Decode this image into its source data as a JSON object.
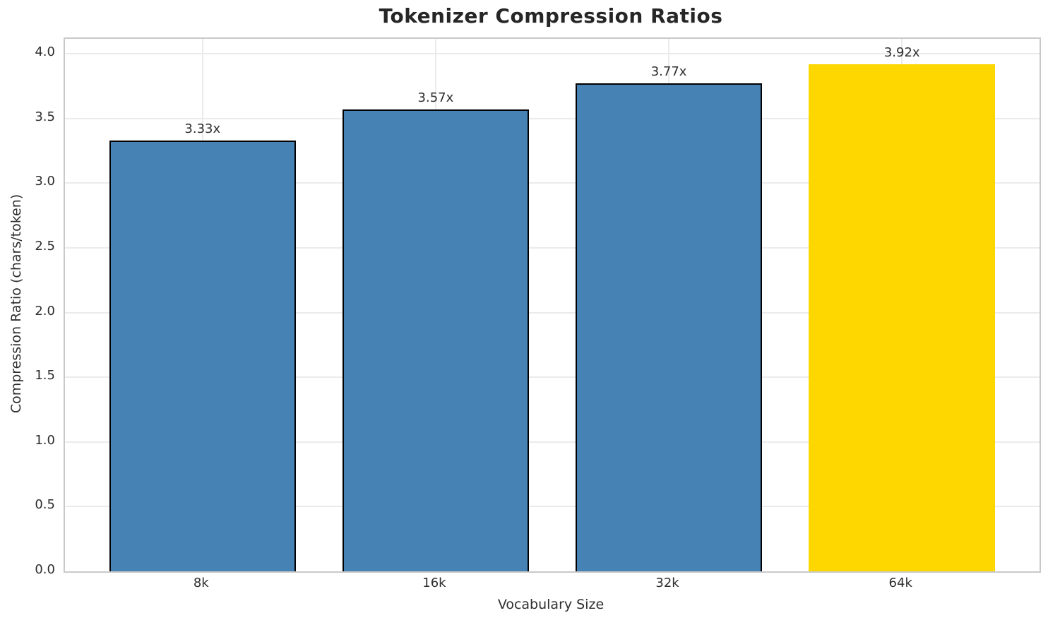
{
  "chart_data": {
    "type": "bar",
    "title": "Tokenizer Compression Ratios",
    "xlabel": "Vocabulary Size",
    "ylabel": "Compression Ratio (chars/token)",
    "categories": [
      "8k",
      "16k",
      "32k",
      "64k"
    ],
    "values": [
      3.33,
      3.57,
      3.77,
      3.92
    ],
    "bar_labels": [
      "3.33x",
      "3.57x",
      "3.77x",
      "3.92x"
    ],
    "yticks": [
      0.0,
      0.5,
      1.0,
      1.5,
      2.0,
      2.5,
      3.0,
      3.5,
      4.0
    ],
    "ytick_labels": [
      "0.0",
      "0.5",
      "1.0",
      "1.5",
      "2.0",
      "2.5",
      "3.0",
      "3.5",
      "4.0"
    ],
    "ylim": [
      0,
      4.115
    ],
    "grid": true,
    "legend_position": "none",
    "bar_colors": [
      "#4682B4",
      "#4682B4",
      "#4682B4",
      "#FFD700"
    ],
    "bar_edge_colors": [
      "#000000",
      "#000000",
      "#000000",
      "none"
    ],
    "base_color": "#4682B4",
    "highlight_color": "#FFD700"
  },
  "style_colors": {
    "grid": "#ebebeb",
    "spine": "#c9c9c9",
    "tick_text": "#2e2e2e",
    "title_text": "#262626",
    "background": "#ffffff"
  }
}
